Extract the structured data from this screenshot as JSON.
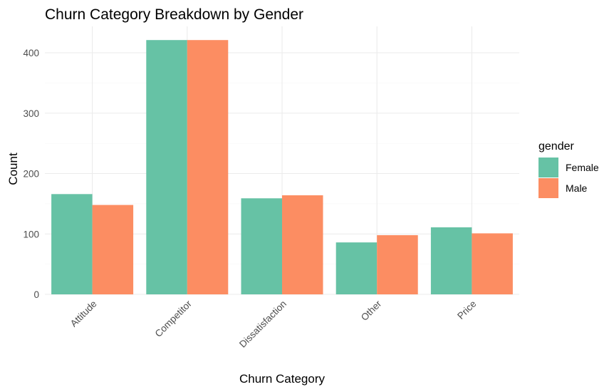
{
  "chart_data": {
    "type": "bar",
    "title": "Churn Category Breakdown by Gender",
    "xlabel": "Churn Category",
    "ylabel": "Count",
    "categories": [
      "Attitude",
      "Competitor",
      "Dissatisfaction",
      "Other",
      "Price"
    ],
    "series": [
      {
        "name": "Female",
        "color": "#66c2a5",
        "values": [
          166,
          421,
          159,
          86,
          111
        ]
      },
      {
        "name": "Male",
        "color": "#fc8d62",
        "values": [
          148,
          421,
          164,
          98,
          101
        ]
      }
    ],
    "ylim": [
      0,
      440
    ],
    "yticks": [
      0,
      100,
      200,
      300,
      400
    ],
    "grid": true,
    "legend": {
      "title": "gender",
      "placement": "right"
    }
  }
}
